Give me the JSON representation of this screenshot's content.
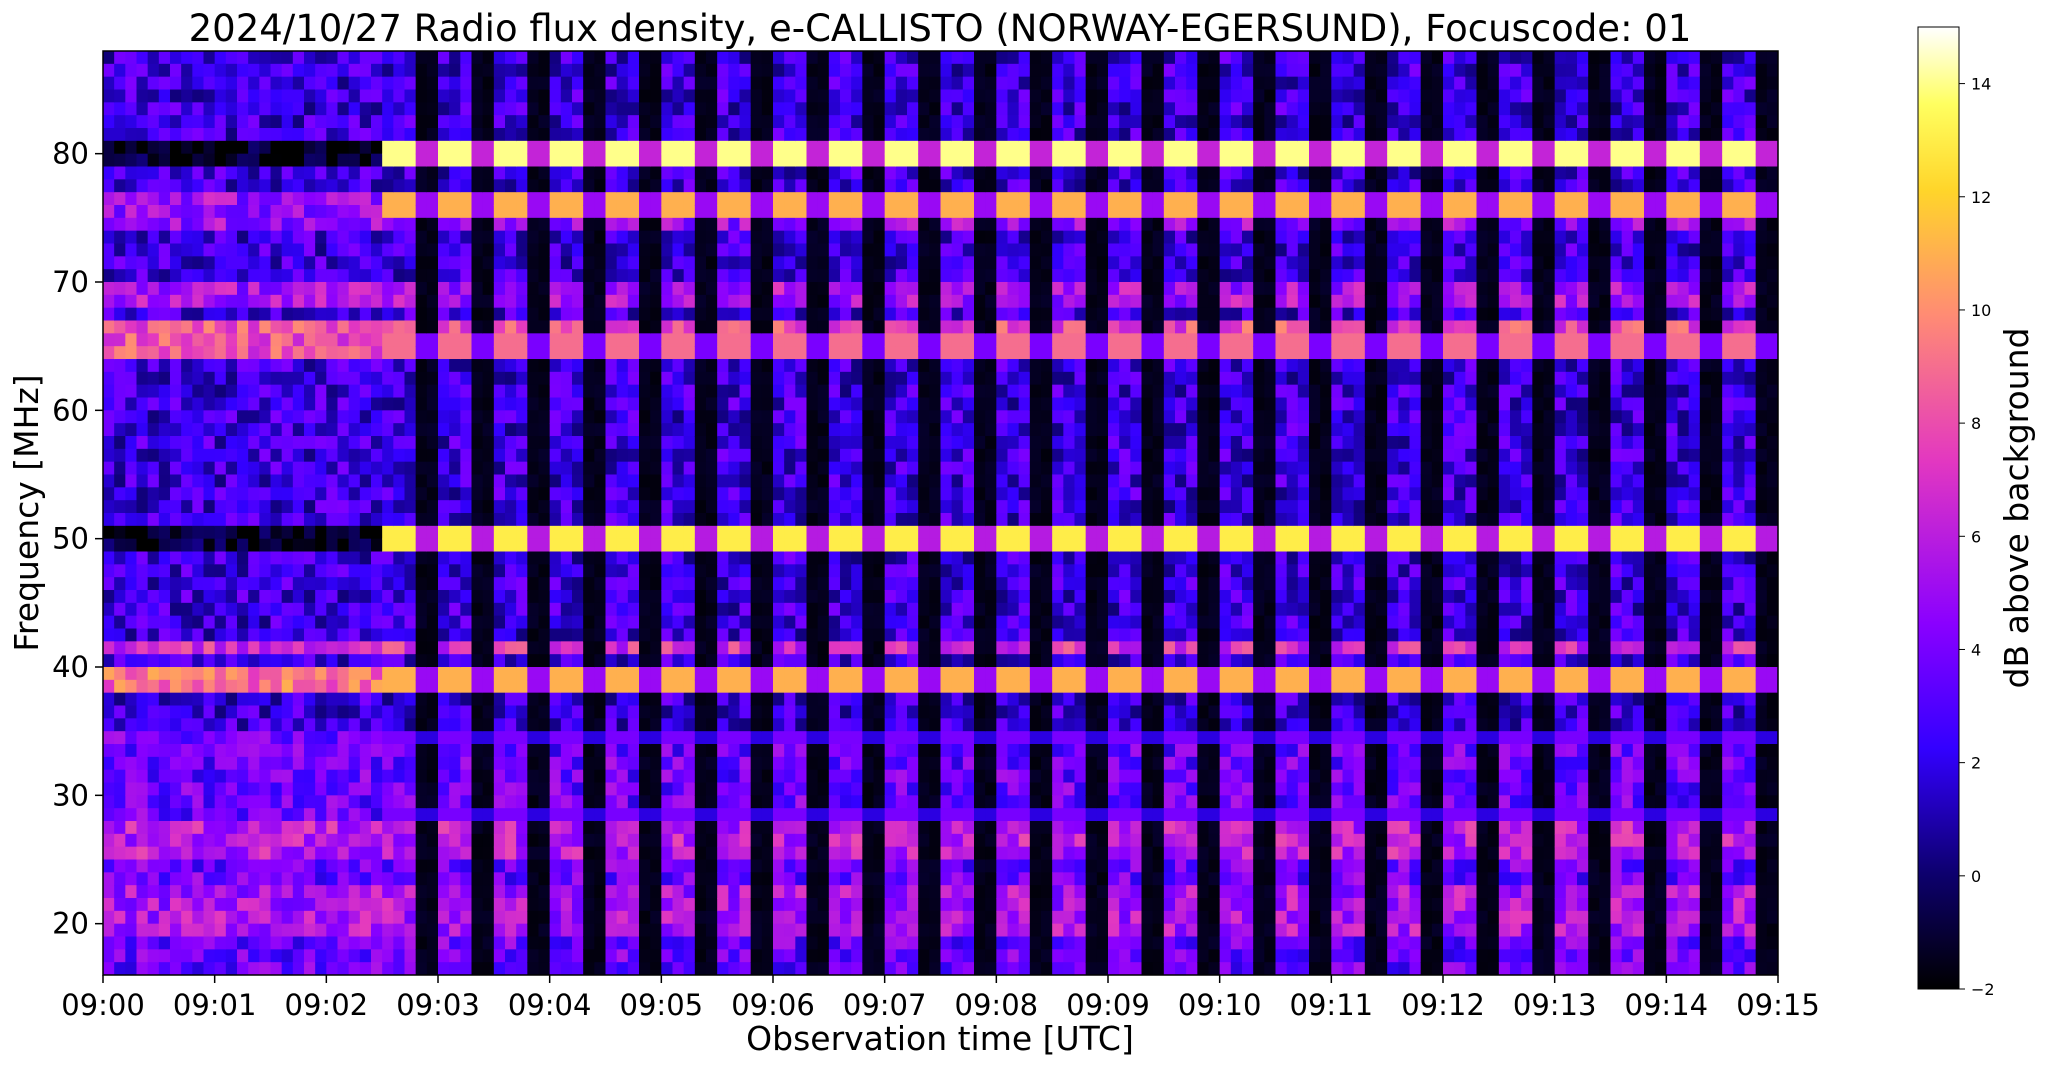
{
  "chart_data": {
    "type": "heatmap",
    "title": "2024/10/27  Radio flux density, e-CALLISTO (NORWAY-EGERSUND), Focuscode: 01",
    "xlabel": "Observation time [UTC]",
    "ylabel": "Frequency [MHz]",
    "x_ticks": [
      "09:00",
      "09:01",
      "09:02",
      "09:03",
      "09:04",
      "09:05",
      "09:06",
      "09:07",
      "09:08",
      "09:09",
      "09:10",
      "09:11",
      "09:12",
      "09:13",
      "09:14",
      "09:15"
    ],
    "xlim_minutes": [
      0,
      15
    ],
    "y_ticks": [
      20,
      30,
      40,
      50,
      60,
      70,
      80
    ],
    "ylim": [
      16,
      88
    ],
    "colorbar": {
      "label": "dB above background",
      "ticks": [
        -2,
        0,
        2,
        4,
        6,
        8,
        10,
        12,
        14
      ],
      "range": [
        -2,
        15
      ],
      "colormap": "gnuplot2",
      "stops": [
        "#000000",
        "#0d006e",
        "#3300ff",
        "#8a00ff",
        "#e338c0",
        "#ff8b74",
        "#ffd52a",
        "#ffff60",
        "#ffffff"
      ]
    },
    "pattern_change_minute": 2.5,
    "cycle_period_minutes": 0.5,
    "horizontal_bands_mhz": [
      {
        "freq": 80,
        "db": 14
      },
      {
        "freq": 76,
        "db": 11
      },
      {
        "freq": 65,
        "db": 9
      },
      {
        "freq": 50,
        "db": 13
      },
      {
        "freq": 39,
        "db": 11
      },
      {
        "freq": 34.5,
        "db": 4
      },
      {
        "freq": 28.5,
        "db": 4
      }
    ]
  }
}
